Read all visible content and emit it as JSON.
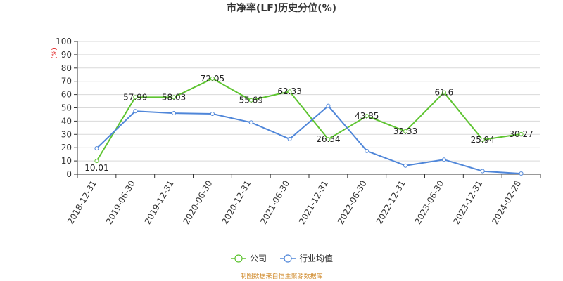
{
  "chart_data": {
    "type": "line",
    "title": "市净率(LF)历史分位(%)",
    "ylabel": "(%)",
    "ylim": [
      0,
      100
    ],
    "yticks": [
      0,
      10,
      20,
      30,
      40,
      50,
      60,
      70,
      80,
      90,
      100
    ],
    "grid": true,
    "legend_position": "bottom-center",
    "categories": [
      "2018-12-31",
      "2019-06-30",
      "2019-12-31",
      "2020-06-30",
      "2020-12-31",
      "2021-06-30",
      "2021-12-31",
      "2022-06-30",
      "2022-12-31",
      "2023-06-30",
      "2023-12-31",
      "2024-02-28"
    ],
    "series": [
      {
        "name": "公司",
        "color": "#5ec431",
        "values": [
          10.01,
          57.99,
          58.03,
          72.05,
          55.69,
          62.33,
          26.34,
          43.85,
          32.33,
          61.6,
          25.94,
          30.27
        ],
        "labels": [
          "10.01",
          "57.99",
          "58.03",
          "72.05",
          "55.69",
          "62.33",
          "26.34",
          "43.85",
          "32.33",
          "61.6",
          "25.94",
          "30.27"
        ]
      },
      {
        "name": "行业均值",
        "color": "#4f86d9",
        "values": [
          19.5,
          47.5,
          46.0,
          45.5,
          39.0,
          26.5,
          51.5,
          17.5,
          6.5,
          11.0,
          2.3,
          0.5
        ]
      }
    ]
  },
  "source_text": "制图数据来自恒生聚源数据库"
}
